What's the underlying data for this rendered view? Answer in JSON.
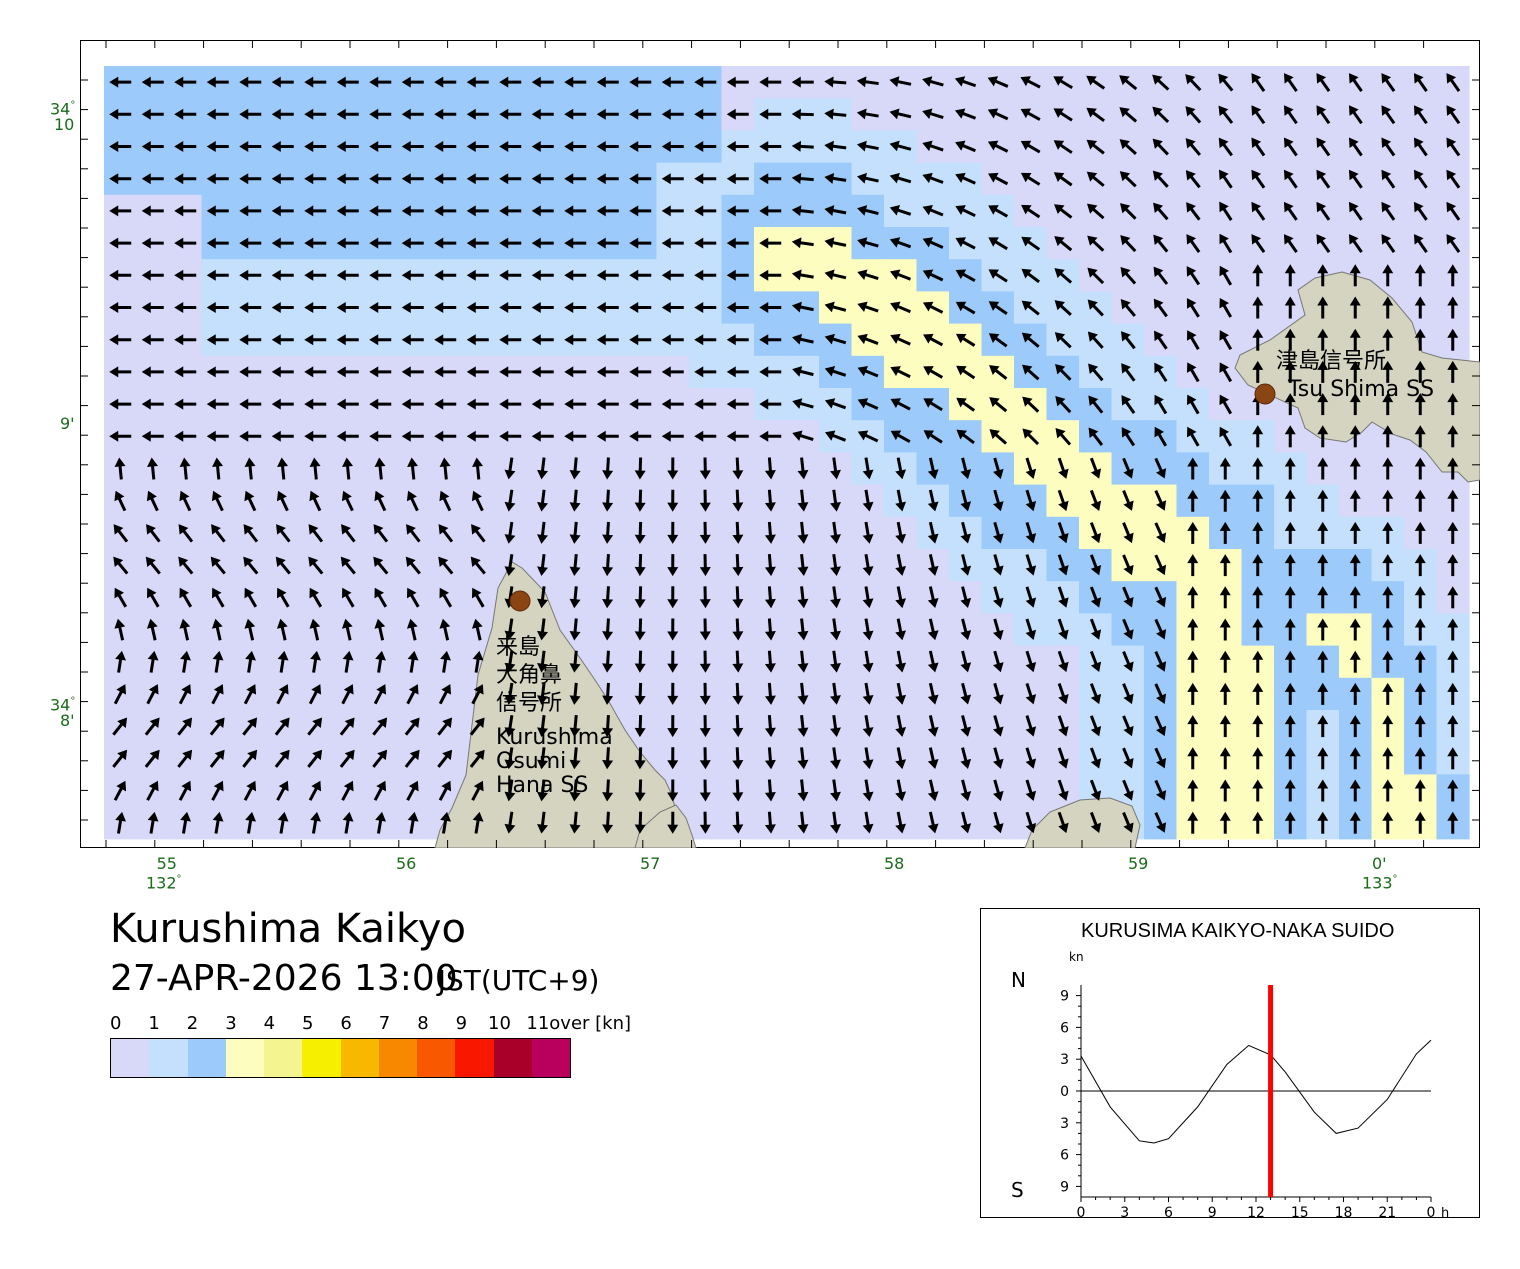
{
  "map": {
    "lat_ticks": [
      {
        "line1": "34",
        "line2": "10",
        "deg": true
      },
      {
        "line1": "9'",
        "line2": ""
      },
      {
        "line1": "34",
        "line2": "8'",
        "deg": true
      }
    ],
    "lon_ticks": [
      {
        "line1": "55",
        "line2": "132",
        "deg": true
      },
      {
        "line1": "56",
        "line2": ""
      },
      {
        "line1": "57",
        "line2": ""
      },
      {
        "line1": "58",
        "line2": ""
      },
      {
        "line1": "59",
        "line2": ""
      },
      {
        "line1": "0'",
        "line2": "133",
        "deg": true
      }
    ],
    "stations": [
      {
        "name_ja": "津島信号所",
        "name_en": "Tsu Shima SS"
      },
      {
        "name_ja_lines": [
          "来島",
          "大角鼻",
          "信号所"
        ],
        "name_en_lines": [
          "Kurushima",
          "Osumi",
          "Hana SS"
        ]
      }
    ],
    "colors": {
      "land": "#d4d4c0",
      "bg_low": "#d8d8f8",
      "station": "#8b4513"
    }
  },
  "title": "Kurushima Kaikyo",
  "datetime": {
    "main": "27-APR-2026 13:00",
    "tz": "JST(UTC+9)"
  },
  "legend": {
    "labels": [
      "0",
      "1",
      "2",
      "3",
      "4",
      "5",
      "6",
      "7",
      "8",
      "9",
      "10",
      "11over [kn]"
    ],
    "colors": [
      "#d8d8f8",
      "#c4e0fc",
      "#9ccafa",
      "#fdfdc0",
      "#f4f490",
      "#f6f000",
      "#f8b800",
      "#f88800",
      "#f85800",
      "#f81800",
      "#a80028",
      "#b8005c"
    ]
  },
  "tide_chart": {
    "title": "KURUSIMA KAIKYO-NAKA SUIDO",
    "unit": "kn",
    "north_label": "N",
    "south_label": "S",
    "y_tick_labels": [
      "9",
      "6",
      "3",
      "0",
      "3",
      "6",
      "9"
    ],
    "x_tick_labels": [
      "0",
      "3",
      "6",
      "9",
      "12",
      "15",
      "18",
      "21",
      "0"
    ],
    "x_unit": "h",
    "current_hour": 13,
    "chart_data": {
      "type": "line",
      "xlabel": "",
      "ylabel": "",
      "xlim": [
        0,
        24
      ],
      "ylim": [
        -10,
        10
      ],
      "x": [
        0,
        2,
        4,
        5,
        6,
        8,
        10,
        11.5,
        13,
        14,
        16,
        17.5,
        19,
        21,
        23,
        24
      ],
      "series": [
        {
          "values": [
            3.3,
            -1.5,
            -4.7,
            -4.9,
            -4.5,
            -1.5,
            2.5,
            4.3,
            3.4,
            1.8,
            -2.0,
            -4.0,
            -3.5,
            -0.8,
            3.5,
            4.8
          ]
        }
      ]
    }
  }
}
